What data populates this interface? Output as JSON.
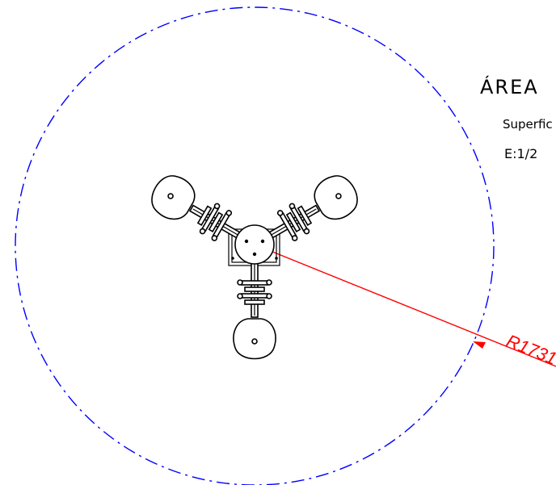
{
  "title": "ÁREA",
  "subtitle": "Superfic",
  "scale": "E:1/2",
  "dimension_label": "R1731",
  "colors": {
    "boundary_circle": "#0000ff",
    "dimension_line": "#ff0000",
    "part_outline": "#000000",
    "background": "#ffffff"
  }
}
